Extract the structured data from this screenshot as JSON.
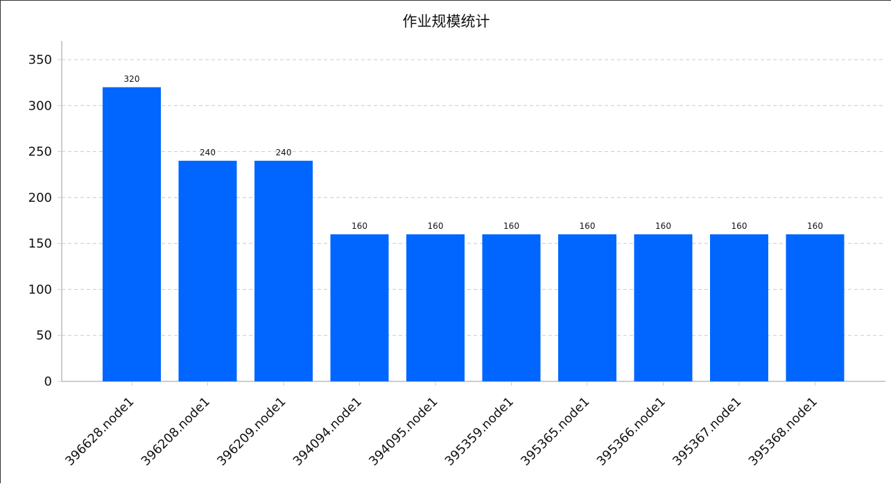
{
  "chart_data": {
    "type": "bar",
    "title": "作业规模统计",
    "xlabel": "",
    "ylabel": "",
    "categories": [
      "396628.node1",
      "396208.node1",
      "396209.node1",
      "394094.node1",
      "394095.node1",
      "395359.node1",
      "395365.node1",
      "395366.node1",
      "395367.node1",
      "395368.node1"
    ],
    "values": [
      320,
      240,
      240,
      160,
      160,
      160,
      160,
      160,
      160,
      160
    ],
    "ylim": [
      0,
      370
    ],
    "yticks": [
      0,
      50,
      100,
      150,
      200,
      250,
      300,
      350
    ],
    "grid": true,
    "legend": "none",
    "bar_color": "#0066ff",
    "grid_color": "#c8c8c8",
    "axis_color": "#cccccc"
  }
}
